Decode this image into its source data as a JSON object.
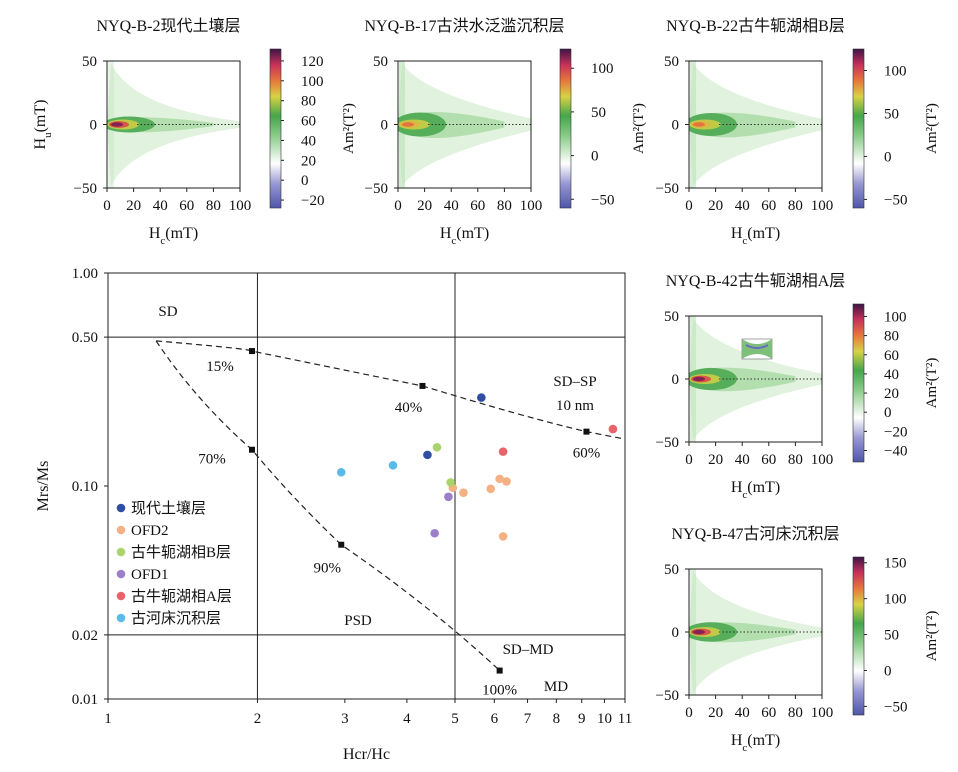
{
  "fork_panels": [
    {
      "title": "NYQ-B-2现代土壤层",
      "xlabel": "H",
      "xlabel_sub": "c",
      "xlabel_unit": "(mT)",
      "ylabel": "H",
      "ylabel_sub": "u",
      "ylabel_unit": "(mT)",
      "x_ticks": [
        "0",
        "20",
        "40",
        "60",
        "80",
        "100"
      ],
      "y_ticks": [
        "50",
        "0",
        "−50"
      ],
      "cbar_label": "Am²(T²)",
      "cbar_ticks": [
        "120",
        "100",
        "80",
        "60",
        "40",
        "20",
        "0",
        "−20"
      ],
      "cbar_range": [
        -28,
        132
      ],
      "show_ylabel": true,
      "inset": false,
      "spread": 0.55,
      "core_strength": 1.0
    },
    {
      "title": "NYQ-B-17古洪水泛滥沉积层",
      "xlabel": "H",
      "xlabel_sub": "c",
      "xlabel_unit": "(mT)",
      "ylabel": "",
      "ylabel_sub": "",
      "ylabel_unit": "",
      "x_ticks": [
        "0",
        "20",
        "40",
        "60",
        "80",
        "100"
      ],
      "y_ticks": [
        "50",
        "0",
        "−50"
      ],
      "cbar_label": "Am²(T²)",
      "cbar_ticks": [
        "100",
        "50",
        "0",
        "−50"
      ],
      "cbar_range": [
        -60,
        122
      ],
      "show_ylabel": false,
      "inset": false,
      "spread": 1.0,
      "core_strength": 0.85
    },
    {
      "title": "NYQ-B-22古牛轭湖相B层",
      "xlabel": "H",
      "xlabel_sub": "c",
      "xlabel_unit": "(mT)",
      "ylabel": "",
      "ylabel_sub": "",
      "ylabel_unit": "",
      "x_ticks": [
        "0",
        "20",
        "40",
        "60",
        "80",
        "100"
      ],
      "y_ticks": [
        "50",
        "0",
        "−50"
      ],
      "cbar_label": "Am²(T²)",
      "cbar_ticks": [
        "100",
        "50",
        "0",
        "−50"
      ],
      "cbar_range": [
        -60,
        125
      ],
      "show_ylabel": false,
      "inset": false,
      "spread": 0.95,
      "core_strength": 0.85
    },
    {
      "title": "NYQ-B-42古牛轭湖相A层",
      "xlabel": "H",
      "xlabel_sub": "c",
      "xlabel_unit": "(mT)",
      "ylabel": "",
      "ylabel_sub": "",
      "ylabel_unit": "",
      "x_ticks": [
        "0",
        "20",
        "40",
        "60",
        "80",
        "100"
      ],
      "y_ticks": [
        "50",
        "0",
        "−50"
      ],
      "cbar_label": "Am²(T²)",
      "cbar_ticks": [
        "100",
        "80",
        "60",
        "40",
        "20",
        "0",
        "−20",
        "−40"
      ],
      "cbar_range": [
        -52,
        113
      ],
      "show_ylabel": false,
      "inset": true,
      "spread": 0.9,
      "core_strength": 1.0
    },
    {
      "title": "NYQ-B-47古河床沉积层",
      "xlabel": "H",
      "xlabel_sub": "c",
      "xlabel_unit": "(mT)",
      "ylabel": "",
      "ylabel_sub": "",
      "ylabel_unit": "",
      "x_ticks": [
        "0",
        "20",
        "40",
        "60",
        "80",
        "100"
      ],
      "y_ticks": [
        "50",
        "0",
        "−50"
      ],
      "cbar_label": "Am²(T²)",
      "cbar_ticks": [
        "150",
        "100",
        "50",
        "0",
        "−50"
      ],
      "cbar_range": [
        -62,
        158
      ],
      "show_ylabel": false,
      "inset": false,
      "spread": 0.75,
      "core_strength": 1.0
    }
  ],
  "chart_data": {
    "type": "scatter",
    "xlabel": "Hcr/Hc",
    "ylabel": "Mrs/Ms",
    "x_scale": "log",
    "y_scale": "log",
    "xlim": [
      1,
      11
    ],
    "ylim": [
      0.01,
      1.0
    ],
    "x_ticks": [
      "1",
      "2",
      "3",
      "4",
      "5",
      "6",
      "7",
      "8",
      "9",
      "10",
      "11"
    ],
    "y_ticks": [
      "1.00",
      "0.50",
      "0.10",
      "0.02",
      "0.01"
    ],
    "region_labels": [
      "SD",
      "SD–SP",
      "PSD",
      "SD–MD",
      "MD"
    ],
    "sp_label": "10 nm",
    "legend_position": "left",
    "series": [
      {
        "name": "现代土壤层",
        "color": "#2f4ea3",
        "points": [
          [
            4.4,
            0.14
          ],
          [
            5.65,
            0.26
          ]
        ]
      },
      {
        "name": "OFD2",
        "color": "#f4b183",
        "points": [
          [
            4.95,
            0.098
          ],
          [
            5.2,
            0.093
          ],
          [
            5.9,
            0.097
          ],
          [
            6.15,
            0.108
          ],
          [
            6.35,
            0.105
          ],
          [
            6.25,
            0.058
          ]
        ]
      },
      {
        "name": "古牛轭湖相B层",
        "color": "#a9d46b",
        "points": [
          [
            4.6,
            0.152
          ],
          [
            4.9,
            0.104
          ]
        ]
      },
      {
        "name": "OFD1",
        "color": "#9b7fc9",
        "points": [
          [
            4.55,
            0.06
          ],
          [
            4.85,
            0.089
          ]
        ]
      },
      {
        "name": "古牛轭湖相A层",
        "color": "#e8636a",
        "points": [
          [
            6.25,
            0.145
          ],
          [
            10.4,
            0.185
          ]
        ]
      },
      {
        "name": "古河床沉积层",
        "color": "#5bbbe8",
        "points": [
          [
            2.95,
            0.116
          ],
          [
            3.75,
            0.125
          ]
        ]
      }
    ],
    "curve_sd_sp": {
      "points": [
        [
          1.25,
          0.48
        ],
        [
          1.95,
          0.43
        ],
        [
          4.3,
          0.295
        ],
        [
          9.2,
          0.18
        ]
      ],
      "labels": [
        "15%",
        "40%",
        "60%"
      ]
    },
    "curve_sd_md": {
      "points": [
        [
          1.25,
          0.48
        ],
        [
          1.95,
          0.148
        ],
        [
          2.95,
          0.053
        ],
        [
          6.15,
          0.0136
        ]
      ],
      "labels": [
        "70%",
        "90%",
        "100%"
      ]
    }
  }
}
